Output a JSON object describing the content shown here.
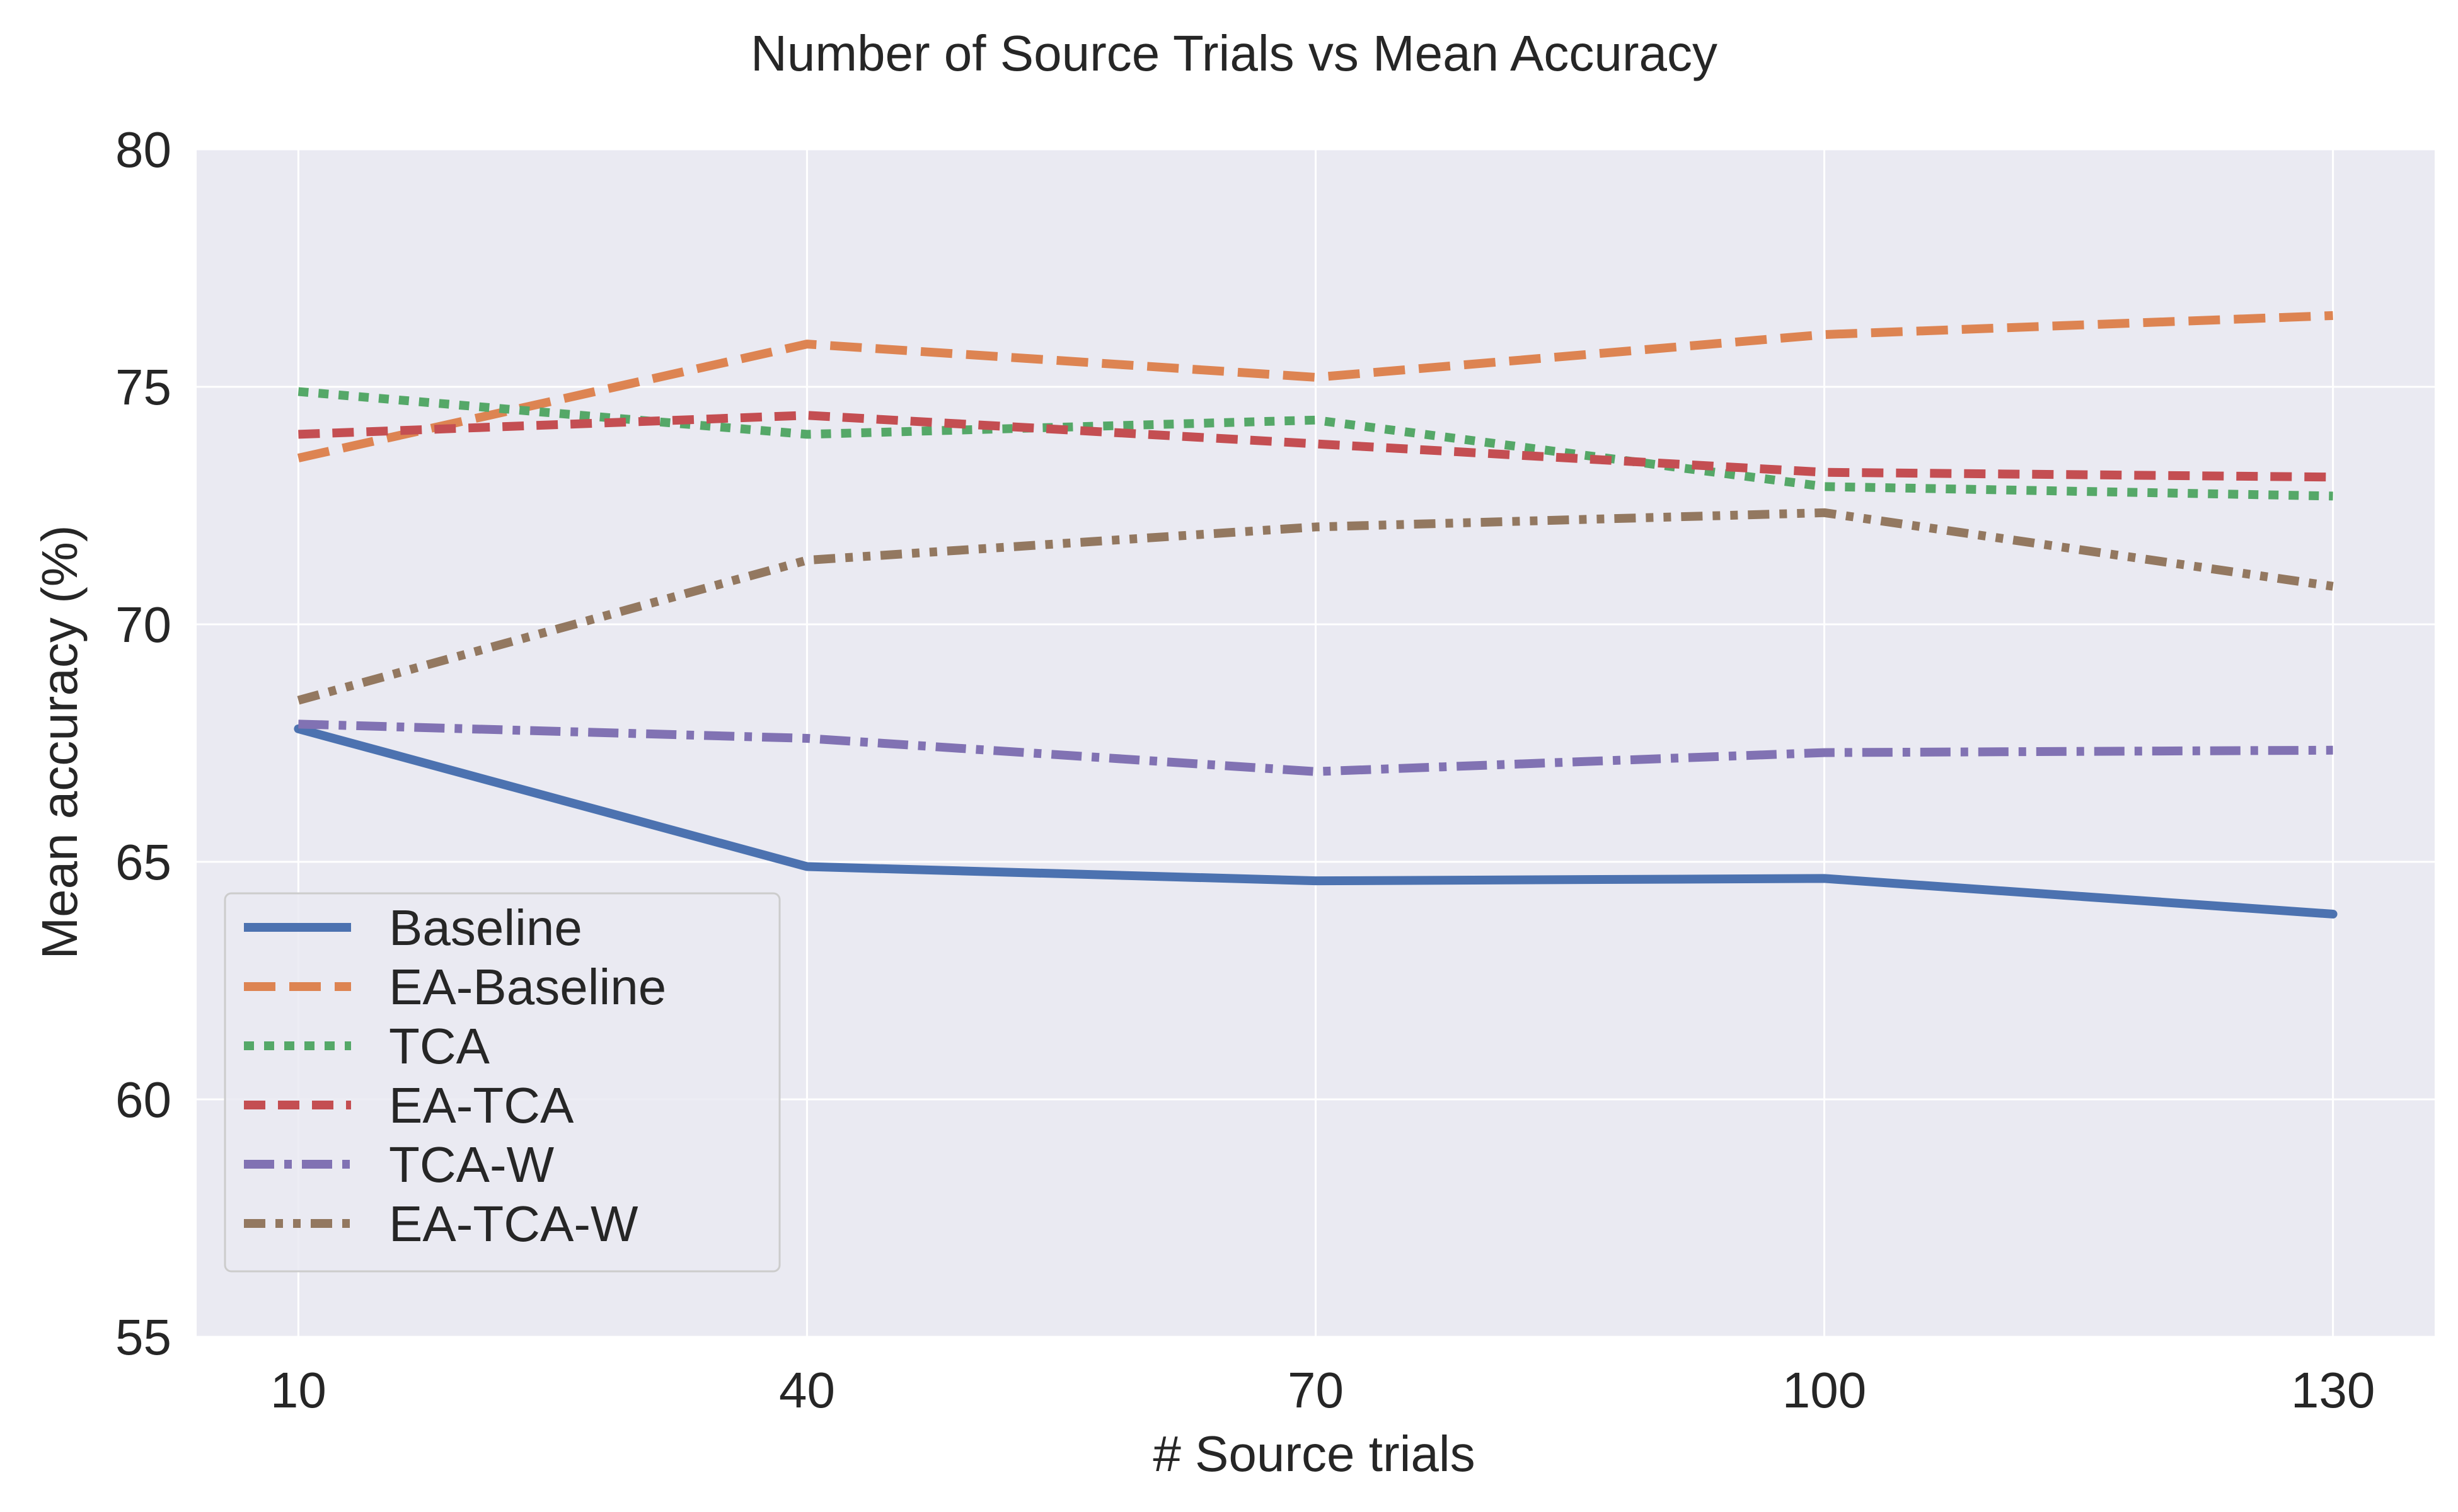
{
  "chart_data": {
    "type": "line",
    "title": "Number of Source Trials vs  Mean Accuracy",
    "xlabel": "# Source trials",
    "ylabel": "Mean accuracy (%)",
    "x": [
      10,
      40,
      70,
      100,
      130
    ],
    "x_tick_labels": [
      "10",
      "40",
      "70",
      "100",
      "130"
    ],
    "y_tick_labels": [
      "55",
      "60",
      "65",
      "70",
      "75",
      "80"
    ],
    "y_ticks": [
      55,
      60,
      65,
      70,
      75,
      80
    ],
    "xlim": [
      4,
      136
    ],
    "ylim": [
      55,
      80
    ],
    "grid": true,
    "legend_position": "lower-left",
    "background_color": "#eaeaf2",
    "series": [
      {
        "name": "Baseline",
        "color": "#4c72b0",
        "dash": "solid",
        "values": [
          67.8,
          64.9,
          64.6,
          64.65,
          63.9
        ]
      },
      {
        "name": "EA-Baseline",
        "color": "#dd8452",
        "dash": "dashed",
        "values": [
          73.5,
          75.9,
          75.2,
          76.1,
          76.5
        ]
      },
      {
        "name": "TCA",
        "color": "#55a868",
        "dash": "dotted",
        "values": [
          74.9,
          74.0,
          74.3,
          72.9,
          72.7
        ]
      },
      {
        "name": "EA-TCA",
        "color": "#c44e52",
        "dash": "dashed-short",
        "values": [
          74.0,
          74.4,
          73.8,
          73.2,
          73.1
        ]
      },
      {
        "name": "TCA-W",
        "color": "#8172b3",
        "dash": "dashdot",
        "values": [
          67.9,
          67.6,
          66.9,
          67.3,
          67.35
        ]
      },
      {
        "name": "EA-TCA-W",
        "color": "#937860",
        "dash": "dashdotdot",
        "values": [
          68.4,
          71.35,
          72.05,
          72.35,
          70.8
        ]
      }
    ]
  }
}
